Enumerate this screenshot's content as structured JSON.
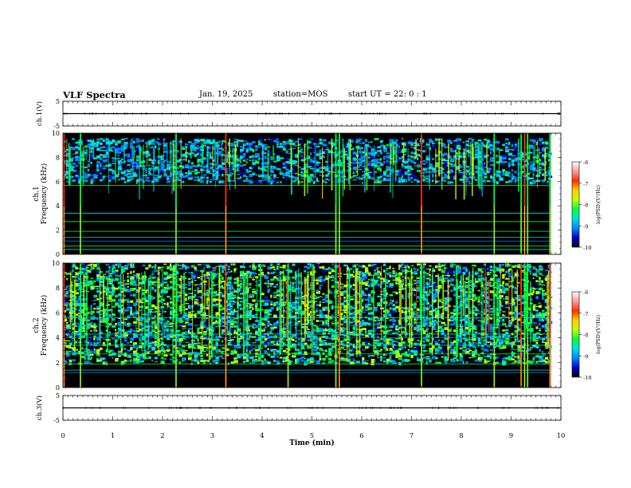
{
  "header": {
    "title": "VLF Spectra",
    "date": "Jan. 19, 2025",
    "station": "station=MOS",
    "start": "start UT =  22: 0  : 1"
  },
  "chart_data": [
    {
      "type": "line",
      "panel": "ch1-waveform",
      "ylabel": "ch.1(V)",
      "ylim": [
        -5,
        5
      ],
      "yticks": [
        5,
        -5
      ],
      "x": [
        0,
        10
      ],
      "values": [
        0,
        0
      ]
    },
    {
      "type": "heatmap",
      "panel": "ch1-spectrogram",
      "ylabel_top": "ch.1",
      "ylabel": "Frequency (kHz)",
      "ylim": [
        0,
        10
      ],
      "yticks": [
        0,
        2,
        4,
        6,
        8,
        10
      ],
      "xlim": [
        0,
        9.8
      ],
      "spherics_min": [
        0.02,
        0.35,
        2.27,
        3.27,
        5.48,
        5.55,
        7.2,
        8.66,
        9.2,
        9.27,
        9.33,
        9.78
      ],
      "tone_khz": [
        0.4,
        0.7,
        1.1,
        1.4,
        1.9,
        2.7,
        3.4,
        5.7
      ],
      "colorbar": {
        "label": "log(PSD)(V²/Hz)",
        "range": [
          -10,
          -6
        ],
        "ticks": [
          -6,
          -7,
          -8,
          -9,
          -10
        ],
        "colors": [
          "#000000",
          "#0000d0",
          "#0088ff",
          "#00e0e0",
          "#00ff40",
          "#c0ff00",
          "#ffd000",
          "#ff3000",
          "#ff9999",
          "#ffffff"
        ]
      }
    },
    {
      "type": "heatmap",
      "panel": "ch2-spectrogram",
      "ylabel_top": "ch.2",
      "ylabel": "Frequency (kHz)",
      "ylim": [
        0,
        10
      ],
      "yticks": [
        0,
        2,
        4,
        6,
        8,
        10
      ],
      "xlim": [
        0,
        9.8
      ],
      "spherics_min": [
        0.02,
        0.35,
        2.27,
        3.27,
        4.52,
        5.48,
        5.55,
        7.2,
        8.66,
        9.2,
        9.27,
        9.33,
        9.78
      ],
      "tone_khz": [
        1.2,
        1.4,
        1.9,
        2.7,
        3.4,
        4.0,
        4.3,
        5.0,
        5.6
      ],
      "colorbar": {
        "label": "log(PSD)(V²/Hz)",
        "range": [
          -10,
          -6
        ],
        "ticks": [
          -6,
          -7,
          -8,
          -9,
          -10
        ],
        "colors": [
          "#000000",
          "#0000d0",
          "#0088ff",
          "#00e0e0",
          "#00ff40",
          "#c0ff00",
          "#ffd000",
          "#ff3000",
          "#ff9999",
          "#ffffff"
        ]
      }
    },
    {
      "type": "line",
      "panel": "ch3-waveform",
      "ylabel": "ch.3(V)",
      "ylim": [
        -5,
        5
      ],
      "yticks": [
        5,
        -5
      ],
      "x": [
        0,
        10
      ],
      "values": [
        0,
        0
      ]
    }
  ],
  "xaxis": {
    "label": "Time (min)",
    "xlim": [
      0,
      10
    ],
    "ticks": [
      "0",
      "1",
      "2",
      "3",
      "4",
      "5",
      "6",
      "7",
      "8",
      "9",
      "10"
    ]
  }
}
